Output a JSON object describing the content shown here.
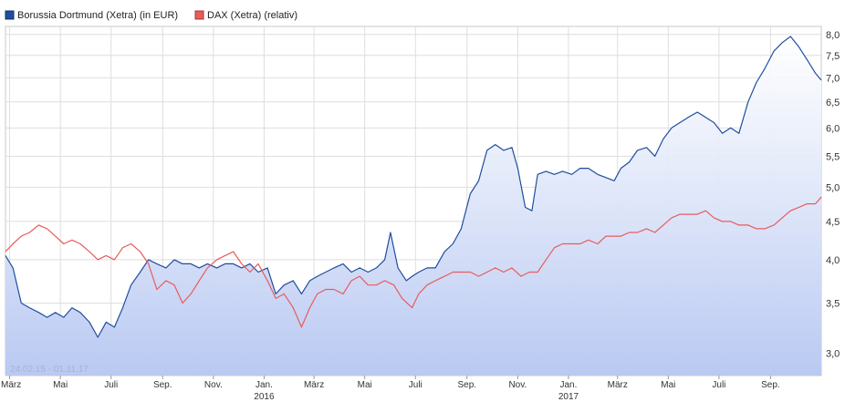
{
  "chart_data": {
    "type": "line",
    "legend": {
      "placement": "top-left",
      "entries": [
        {
          "label": "Borussia Dortmund (Xetra) (in EUR)",
          "color": "#1f4e9e"
        },
        {
          "label": "DAX (Xetra) (relativ)",
          "color": "#e85c5c"
        }
      ]
    },
    "date_range_label": "24.02.15 - 01.11.17",
    "y_scale": "log",
    "y_ticks": [
      "8,0",
      "7,5",
      "7,0",
      "6,5",
      "6,0",
      "5,5",
      "5,0",
      "4,5",
      "4,0",
      "3,5",
      "3,0"
    ],
    "y_tick_values": [
      8.0,
      7.5,
      7.0,
      6.5,
      6.0,
      5.5,
      5.0,
      4.5,
      4.0,
      3.5,
      3.0
    ],
    "ylim": [
      2.8,
      8.2
    ],
    "xlim": [
      "2015-02-24",
      "2017-11-01"
    ],
    "x_ticks": [
      {
        "label": "März",
        "date": "2015-03-01"
      },
      {
        "label": "Mai",
        "date": "2015-05-01"
      },
      {
        "label": "Juli",
        "date": "2015-07-01"
      },
      {
        "label": "Sep.",
        "date": "2015-09-01"
      },
      {
        "label": "Nov.",
        "date": "2015-11-01"
      },
      {
        "label": "Jan.",
        "date": "2016-01-01"
      },
      {
        "label": "März",
        "date": "2016-03-01"
      },
      {
        "label": "Mai",
        "date": "2016-05-01"
      },
      {
        "label": "Juli",
        "date": "2016-07-01"
      },
      {
        "label": "Sep.",
        "date": "2016-09-01"
      },
      {
        "label": "Nov.",
        "date": "2016-11-01"
      },
      {
        "label": "Jan.",
        "date": "2017-01-01"
      },
      {
        "label": "März",
        "date": "2017-03-01"
      },
      {
        "label": "Mai",
        "date": "2017-05-01"
      },
      {
        "label": "Juli",
        "date": "2017-07-01"
      },
      {
        "label": "Sep.",
        "date": "2017-09-01"
      }
    ],
    "year_labels": [
      {
        "label": "2016",
        "date": "2016-01-01"
      },
      {
        "label": "2017",
        "date": "2017-01-01"
      }
    ],
    "grid": true,
    "series": [
      {
        "name": "Borussia Dortmund (Xetra) (in EUR)",
        "color": "#1f4e9e",
        "fill": true,
        "points": [
          [
            "2015-02-24",
            4.05
          ],
          [
            "2015-03-05",
            3.9
          ],
          [
            "2015-03-15",
            3.5
          ],
          [
            "2015-03-25",
            3.45
          ],
          [
            "2015-04-05",
            3.4
          ],
          [
            "2015-04-15",
            3.35
          ],
          [
            "2015-04-25",
            3.4
          ],
          [
            "2015-05-05",
            3.35
          ],
          [
            "2015-05-15",
            3.45
          ],
          [
            "2015-05-25",
            3.4
          ],
          [
            "2015-06-05",
            3.3
          ],
          [
            "2015-06-15",
            3.15
          ],
          [
            "2015-06-25",
            3.3
          ],
          [
            "2015-07-05",
            3.25
          ],
          [
            "2015-07-15",
            3.45
          ],
          [
            "2015-07-25",
            3.7
          ],
          [
            "2015-08-05",
            3.85
          ],
          [
            "2015-08-15",
            4.0
          ],
          [
            "2015-08-25",
            3.95
          ],
          [
            "2015-09-05",
            3.9
          ],
          [
            "2015-09-15",
            4.0
          ],
          [
            "2015-09-25",
            3.95
          ],
          [
            "2015-10-05",
            3.95
          ],
          [
            "2015-10-15",
            3.9
          ],
          [
            "2015-10-25",
            3.95
          ],
          [
            "2015-11-05",
            3.9
          ],
          [
            "2015-11-15",
            3.95
          ],
          [
            "2015-11-25",
            3.95
          ],
          [
            "2015-12-05",
            3.9
          ],
          [
            "2015-12-15",
            3.95
          ],
          [
            "2015-12-25",
            3.85
          ],
          [
            "2016-01-05",
            3.9
          ],
          [
            "2016-01-15",
            3.6
          ],
          [
            "2016-01-25",
            3.7
          ],
          [
            "2016-02-05",
            3.75
          ],
          [
            "2016-02-15",
            3.6
          ],
          [
            "2016-02-25",
            3.75
          ],
          [
            "2016-03-05",
            3.8
          ],
          [
            "2016-03-15",
            3.85
          ],
          [
            "2016-03-25",
            3.9
          ],
          [
            "2016-04-05",
            3.95
          ],
          [
            "2016-04-15",
            3.85
          ],
          [
            "2016-04-25",
            3.9
          ],
          [
            "2016-05-05",
            3.85
          ],
          [
            "2016-05-15",
            3.9
          ],
          [
            "2016-05-25",
            4.0
          ],
          [
            "2016-06-01",
            4.35
          ],
          [
            "2016-06-10",
            3.9
          ],
          [
            "2016-06-20",
            3.75
          ],
          [
            "2016-06-27",
            3.8
          ],
          [
            "2016-07-05",
            3.85
          ],
          [
            "2016-07-15",
            3.9
          ],
          [
            "2016-07-25",
            3.9
          ],
          [
            "2016-08-05",
            4.1
          ],
          [
            "2016-08-15",
            4.2
          ],
          [
            "2016-08-25",
            4.4
          ],
          [
            "2016-09-05",
            4.9
          ],
          [
            "2016-09-15",
            5.1
          ],
          [
            "2016-09-25",
            5.6
          ],
          [
            "2016-10-05",
            5.7
          ],
          [
            "2016-10-15",
            5.6
          ],
          [
            "2016-10-25",
            5.65
          ],
          [
            "2016-11-01",
            5.3
          ],
          [
            "2016-11-10",
            4.7
          ],
          [
            "2016-11-18",
            4.65
          ],
          [
            "2016-11-25",
            5.2
          ],
          [
            "2016-12-05",
            5.25
          ],
          [
            "2016-12-15",
            5.2
          ],
          [
            "2016-12-25",
            5.25
          ],
          [
            "2017-01-05",
            5.2
          ],
          [
            "2017-01-15",
            5.3
          ],
          [
            "2017-01-25",
            5.3
          ],
          [
            "2017-02-05",
            5.2
          ],
          [
            "2017-02-15",
            5.15
          ],
          [
            "2017-02-25",
            5.1
          ],
          [
            "2017-03-05",
            5.3
          ],
          [
            "2017-03-15",
            5.4
          ],
          [
            "2017-03-25",
            5.6
          ],
          [
            "2017-04-05",
            5.65
          ],
          [
            "2017-04-15",
            5.5
          ],
          [
            "2017-04-25",
            5.8
          ],
          [
            "2017-05-05",
            6.0
          ],
          [
            "2017-05-15",
            6.1
          ],
          [
            "2017-05-25",
            6.2
          ],
          [
            "2017-06-05",
            6.3
          ],
          [
            "2017-06-15",
            6.2
          ],
          [
            "2017-06-25",
            6.1
          ],
          [
            "2017-07-05",
            5.9
          ],
          [
            "2017-07-15",
            6.0
          ],
          [
            "2017-07-25",
            5.9
          ],
          [
            "2017-08-05",
            6.5
          ],
          [
            "2017-08-15",
            6.9
          ],
          [
            "2017-08-25",
            7.2
          ],
          [
            "2017-09-05",
            7.6
          ],
          [
            "2017-09-15",
            7.8
          ],
          [
            "2017-09-25",
            7.95
          ],
          [
            "2017-10-05",
            7.7
          ],
          [
            "2017-10-15",
            7.4
          ],
          [
            "2017-10-25",
            7.1
          ],
          [
            "2017-11-01",
            6.95
          ]
        ]
      },
      {
        "name": "DAX (Xetra) (relativ)",
        "color": "#e85c5c",
        "fill": false,
        "points": [
          [
            "2015-02-24",
            4.1
          ],
          [
            "2015-03-05",
            4.2
          ],
          [
            "2015-03-15",
            4.3
          ],
          [
            "2015-03-25",
            4.35
          ],
          [
            "2015-04-05",
            4.45
          ],
          [
            "2015-04-15",
            4.4
          ],
          [
            "2015-04-25",
            4.3
          ],
          [
            "2015-05-05",
            4.2
          ],
          [
            "2015-05-15",
            4.25
          ],
          [
            "2015-05-25",
            4.2
          ],
          [
            "2015-06-05",
            4.1
          ],
          [
            "2015-06-15",
            4.0
          ],
          [
            "2015-06-25",
            4.05
          ],
          [
            "2015-07-05",
            4.0
          ],
          [
            "2015-07-15",
            4.15
          ],
          [
            "2015-07-25",
            4.2
          ],
          [
            "2015-08-05",
            4.1
          ],
          [
            "2015-08-15",
            3.95
          ],
          [
            "2015-08-25",
            3.65
          ],
          [
            "2015-09-05",
            3.75
          ],
          [
            "2015-09-15",
            3.7
          ],
          [
            "2015-09-25",
            3.5
          ],
          [
            "2015-10-05",
            3.6
          ],
          [
            "2015-10-15",
            3.75
          ],
          [
            "2015-10-25",
            3.9
          ],
          [
            "2015-11-05",
            4.0
          ],
          [
            "2015-11-15",
            4.05
          ],
          [
            "2015-11-25",
            4.1
          ],
          [
            "2015-12-05",
            3.95
          ],
          [
            "2015-12-15",
            3.85
          ],
          [
            "2015-12-25",
            3.95
          ],
          [
            "2016-01-05",
            3.75
          ],
          [
            "2016-01-15",
            3.55
          ],
          [
            "2016-01-25",
            3.6
          ],
          [
            "2016-02-05",
            3.45
          ],
          [
            "2016-02-15",
            3.25
          ],
          [
            "2016-02-25",
            3.45
          ],
          [
            "2016-03-05",
            3.6
          ],
          [
            "2016-03-15",
            3.65
          ],
          [
            "2016-03-25",
            3.65
          ],
          [
            "2016-04-05",
            3.6
          ],
          [
            "2016-04-15",
            3.75
          ],
          [
            "2016-04-25",
            3.8
          ],
          [
            "2016-05-05",
            3.7
          ],
          [
            "2016-05-15",
            3.7
          ],
          [
            "2016-05-25",
            3.75
          ],
          [
            "2016-06-05",
            3.7
          ],
          [
            "2016-06-15",
            3.55
          ],
          [
            "2016-06-27",
            3.45
          ],
          [
            "2016-07-05",
            3.6
          ],
          [
            "2016-07-15",
            3.7
          ],
          [
            "2016-07-25",
            3.75
          ],
          [
            "2016-08-05",
            3.8
          ],
          [
            "2016-08-15",
            3.85
          ],
          [
            "2016-08-25",
            3.85
          ],
          [
            "2016-09-05",
            3.85
          ],
          [
            "2016-09-15",
            3.8
          ],
          [
            "2016-09-25",
            3.85
          ],
          [
            "2016-10-05",
            3.9
          ],
          [
            "2016-10-15",
            3.85
          ],
          [
            "2016-10-25",
            3.9
          ],
          [
            "2016-11-05",
            3.8
          ],
          [
            "2016-11-15",
            3.85
          ],
          [
            "2016-11-25",
            3.85
          ],
          [
            "2016-12-05",
            4.0
          ],
          [
            "2016-12-15",
            4.15
          ],
          [
            "2016-12-25",
            4.2
          ],
          [
            "2017-01-05",
            4.2
          ],
          [
            "2017-01-15",
            4.2
          ],
          [
            "2017-01-25",
            4.25
          ],
          [
            "2017-02-05",
            4.2
          ],
          [
            "2017-02-15",
            4.3
          ],
          [
            "2017-02-25",
            4.3
          ],
          [
            "2017-03-05",
            4.3
          ],
          [
            "2017-03-15",
            4.35
          ],
          [
            "2017-03-25",
            4.35
          ],
          [
            "2017-04-05",
            4.4
          ],
          [
            "2017-04-15",
            4.35
          ],
          [
            "2017-04-25",
            4.45
          ],
          [
            "2017-05-05",
            4.55
          ],
          [
            "2017-05-15",
            4.6
          ],
          [
            "2017-05-25",
            4.6
          ],
          [
            "2017-06-05",
            4.6
          ],
          [
            "2017-06-15",
            4.65
          ],
          [
            "2017-06-25",
            4.55
          ],
          [
            "2017-07-05",
            4.5
          ],
          [
            "2017-07-15",
            4.5
          ],
          [
            "2017-07-25",
            4.45
          ],
          [
            "2017-08-05",
            4.45
          ],
          [
            "2017-08-15",
            4.4
          ],
          [
            "2017-08-25",
            4.4
          ],
          [
            "2017-09-05",
            4.45
          ],
          [
            "2017-09-15",
            4.55
          ],
          [
            "2017-09-25",
            4.65
          ],
          [
            "2017-10-05",
            4.7
          ],
          [
            "2017-10-15",
            4.75
          ],
          [
            "2017-10-25",
            4.75
          ],
          [
            "2017-11-01",
            4.85
          ]
        ]
      }
    ]
  }
}
